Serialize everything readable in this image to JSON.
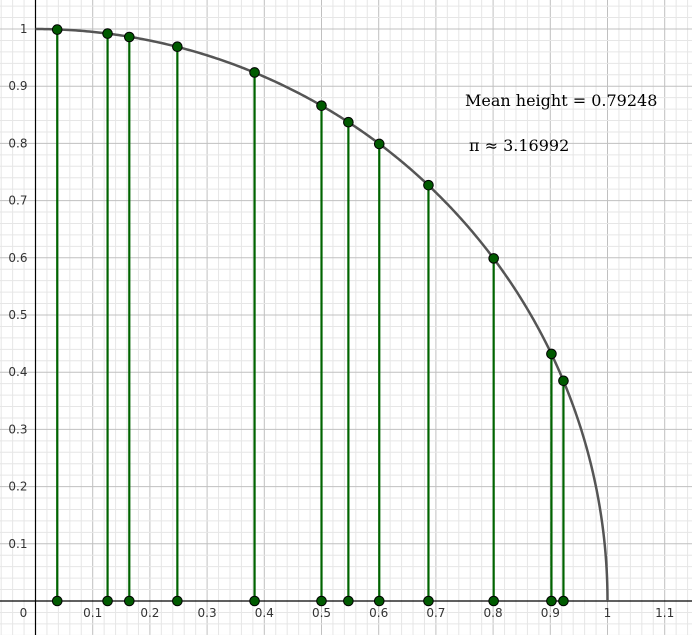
{
  "chart_data": {
    "type": "scatter",
    "title": "",
    "xlabel": "",
    "ylabel": "",
    "xlim": [
      -0.06,
      1.14
    ],
    "ylim": [
      -0.06,
      1.05
    ],
    "grid": true,
    "x_ticks": [
      "0.1",
      "0.2",
      "0.3",
      "0.4",
      "0.5",
      "0.6",
      "0.7",
      "0.8",
      "0.9",
      "1",
      "1.1"
    ],
    "y_ticks": [
      "0.1",
      "0.2",
      "0.3",
      "0.4",
      "0.5",
      "0.6",
      "0.7",
      "0.8",
      "0.9",
      "1"
    ],
    "origin_label": "0",
    "curve": "y = sqrt(1 - x^2), 0 <= x <= 1",
    "points_x": [
      0.038,
      0.126,
      0.164,
      0.248,
      0.383,
      0.5,
      0.547,
      0.601,
      0.687,
      0.801,
      0.902,
      0.923
    ],
    "points_y": [
      0.999,
      0.992,
      0.986,
      0.969,
      0.924,
      0.866,
      0.837,
      0.799,
      0.727,
      0.599,
      0.432,
      0.385
    ],
    "colors": {
      "stems": "#006400",
      "points": "#005a00",
      "curve": "#555555",
      "major_grid": "#c0c0c0",
      "minor_grid": "#e6e6e6",
      "axis": "#000000"
    }
  },
  "annotations": {
    "mean_height": "Mean height = 0.79248",
    "pi_estimate": "π ≈ 3.16992"
  }
}
